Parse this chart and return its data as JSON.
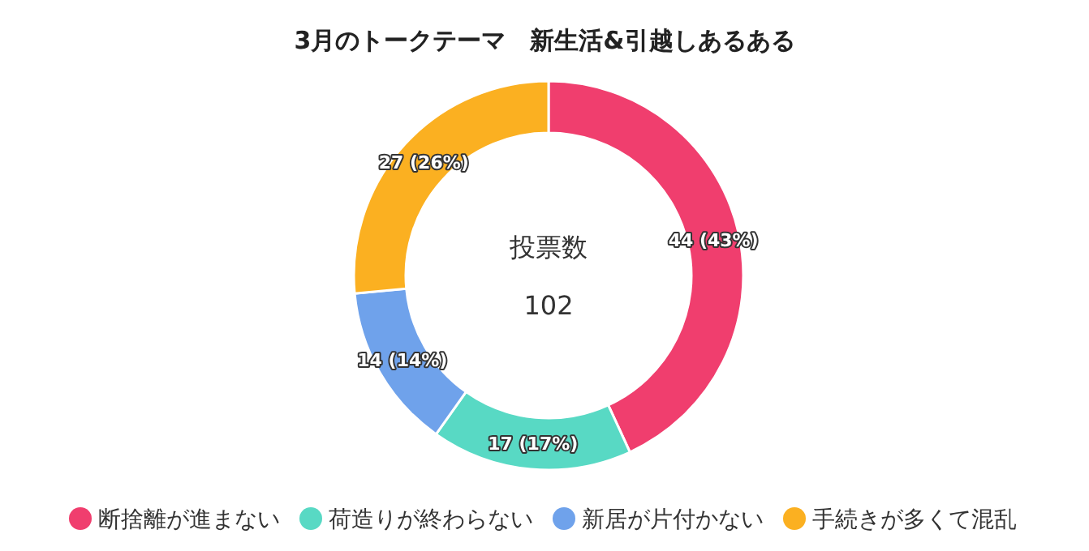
{
  "chart_data": {
    "type": "donut",
    "title": "3月のトークテーマ　新生活&引越しあるある",
    "categories": [
      "断捨離が進まない",
      "荷造りが終わらない",
      "新居が片付かない",
      "手続きが多くて混乱"
    ],
    "values": [
      44,
      17,
      14,
      27
    ],
    "colors": [
      "#f03e6e",
      "#58d9c4",
      "#6fa2eb",
      "#fbb021"
    ],
    "value_labels": [
      "44 (43%)",
      "17 (17%)",
      "14 (14%)",
      "27 (26%)"
    ],
    "annotations": [
      "投票数",
      "102"
    ],
    "legend": "bottom"
  }
}
